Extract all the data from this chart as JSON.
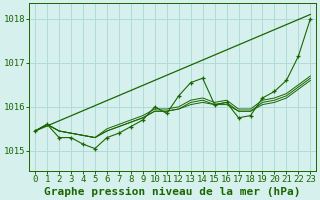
{
  "bg_color": "#d6f0ee",
  "grid_color": "#b0dbd8",
  "line_color": "#1a6600",
  "xlim": [
    -0.5,
    23.5
  ],
  "ylim": [
    1014.55,
    1018.35
  ],
  "yticks": [
    1015,
    1016,
    1017,
    1018
  ],
  "xticks": [
    0,
    1,
    2,
    3,
    4,
    5,
    6,
    7,
    8,
    9,
    10,
    11,
    12,
    13,
    14,
    15,
    16,
    17,
    18,
    19,
    20,
    21,
    22,
    23
  ],
  "title": "Graphe pression niveau de la mer (hPa)",
  "title_fontsize": 8,
  "tick_fontsize": 6.5,
  "trend_line": {
    "x": [
      0,
      23
    ],
    "y": [
      1015.45,
      1018.1
    ]
  },
  "smooth_series": [
    [
      1015.45,
      1015.6,
      1015.45,
      1015.4,
      1015.35,
      1015.3,
      1015.45,
      1015.55,
      1015.65,
      1015.75,
      1015.9,
      1015.9,
      1015.95,
      1016.05,
      1016.1,
      1016.05,
      1016.05,
      1015.9,
      1015.9,
      1016.05,
      1016.1,
      1016.2,
      1016.4,
      1016.6
    ],
    [
      1015.45,
      1015.6,
      1015.45,
      1015.4,
      1015.35,
      1015.3,
      1015.45,
      1015.55,
      1015.65,
      1015.75,
      1015.9,
      1015.9,
      1015.95,
      1016.1,
      1016.15,
      1016.05,
      1016.1,
      1015.9,
      1015.9,
      1016.1,
      1016.15,
      1016.25,
      1016.45,
      1016.65
    ],
    [
      1015.45,
      1015.6,
      1015.45,
      1015.4,
      1015.35,
      1015.3,
      1015.5,
      1015.6,
      1015.7,
      1015.8,
      1015.95,
      1015.95,
      1016.0,
      1016.15,
      1016.2,
      1016.1,
      1016.15,
      1015.95,
      1015.95,
      1016.15,
      1016.2,
      1016.3,
      1016.5,
      1016.7
    ]
  ],
  "main_series": {
    "x": [
      0,
      1,
      2,
      3,
      4,
      5,
      6,
      7,
      8,
      9,
      10,
      11,
      12,
      13,
      14,
      15,
      16,
      17,
      18,
      19,
      20,
      21,
      22,
      23
    ],
    "y": [
      1015.45,
      1015.6,
      1015.3,
      1015.3,
      1015.15,
      1015.05,
      1015.3,
      1015.4,
      1015.55,
      1015.7,
      1016.0,
      1015.85,
      1016.25,
      1016.55,
      1016.65,
      1016.05,
      1016.1,
      1015.75,
      1015.8,
      1016.2,
      1016.35,
      1016.6,
      1017.15,
      1018.0
    ]
  }
}
